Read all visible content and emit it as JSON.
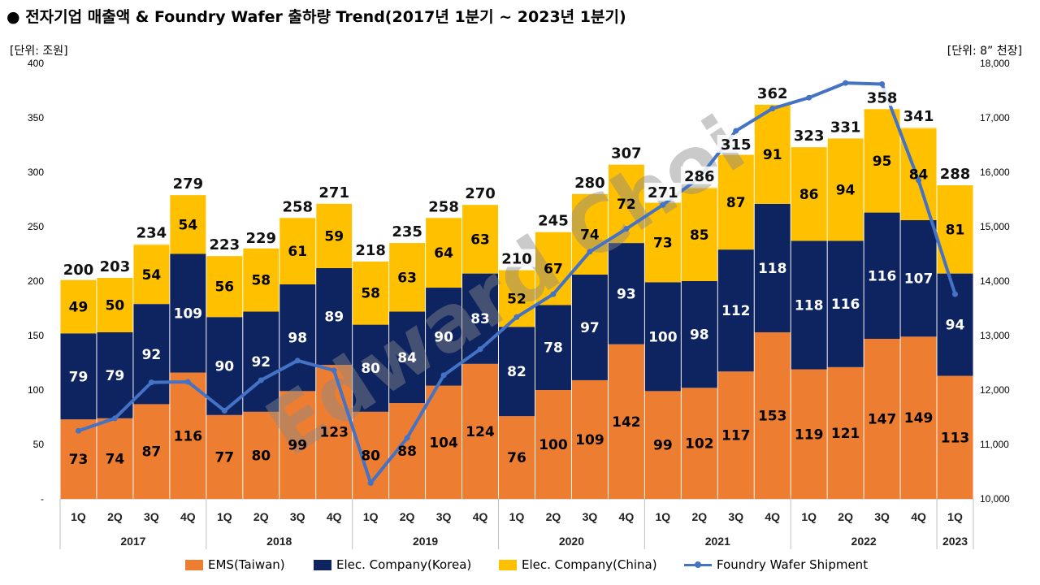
{
  "title": "● 전자기업 매출액 & Foundry Wafer 출하량 Trend(2017년 1분기 ~ 2023년 1분기)",
  "unit_left": "[단위: 조원]",
  "unit_right": "[단위: 8” 천장]",
  "watermark": "Edward Choi",
  "colors": {
    "ems": "#ED7D31",
    "korea": "#0E2461",
    "china": "#FFC000",
    "wafer": "#4472C4",
    "cap": "#FFD966",
    "grid": "#D9D9D9"
  },
  "chart_data": {
    "type": "bar",
    "stacked": true,
    "title": "전자기업 매출액 & Foundry Wafer 출하량 Trend(2017년 1분기 ~ 2023년 1분기)",
    "categories": [
      "1Q",
      "2Q",
      "3Q",
      "4Q",
      "1Q",
      "2Q",
      "3Q",
      "4Q",
      "1Q",
      "2Q",
      "3Q",
      "4Q",
      "1Q",
      "2Q",
      "3Q",
      "4Q",
      "1Q",
      "2Q",
      "3Q",
      "4Q",
      "1Q",
      "2Q",
      "3Q",
      "4Q",
      "1Q"
    ],
    "years": [
      {
        "label": "2017",
        "count": 4
      },
      {
        "label": "2018",
        "count": 4
      },
      {
        "label": "2019",
        "count": 4
      },
      {
        "label": "2020",
        "count": 4
      },
      {
        "label": "2021",
        "count": 4
      },
      {
        "label": "2022",
        "count": 4
      },
      {
        "label": "2023",
        "count": 1
      }
    ],
    "totals": [
      200,
      203,
      234,
      279,
      223,
      229,
      258,
      271,
      218,
      235,
      258,
      270,
      210,
      245,
      280,
      307,
      271,
      286,
      315,
      362,
      323,
      331,
      358,
      341,
      288
    ],
    "series": [
      {
        "name": "EMS(Taiwan)",
        "axis": "left",
        "values": [
          73,
          74,
          87,
          116,
          77,
          80,
          99,
          123,
          80,
          88,
          104,
          124,
          76,
          100,
          109,
          142,
          99,
          102,
          117,
          153,
          119,
          121,
          147,
          149,
          113
        ]
      },
      {
        "name": "Elec. Company(Korea)",
        "axis": "left",
        "values": [
          79,
          79,
          92,
          109,
          90,
          92,
          98,
          89,
          80,
          84,
          90,
          83,
          82,
          78,
          97,
          93,
          100,
          98,
          112,
          118,
          118,
          116,
          116,
          107,
          94
        ]
      },
      {
        "name": "Elec. Company(China)",
        "axis": "left",
        "values": [
          49,
          50,
          54,
          54,
          56,
          58,
          61,
          59,
          58,
          63,
          64,
          63,
          52,
          67,
          74,
          72,
          73,
          85,
          87,
          91,
          86,
          94,
          95,
          84,
          81
        ]
      },
      {
        "name": "Foundry Wafer Shipment",
        "axis": "right",
        "type": "line",
        "values": [
          11250,
          11480,
          12140,
          12150,
          11620,
          12180,
          12540,
          12360,
          10290,
          11120,
          12270,
          12750,
          13340,
          13760,
          14540,
          14960,
          15400,
          15900,
          16760,
          17170,
          17370,
          17640,
          17620,
          15850,
          13760
        ]
      }
    ],
    "y_left": {
      "min": 0,
      "max": 400,
      "step": 50,
      "zero_label": "-",
      "ticks": [
        "-",
        "50",
        "100",
        "150",
        "200",
        "250",
        "300",
        "350",
        "400"
      ]
    },
    "y_right": {
      "min": 10000,
      "max": 18000,
      "step": 1000,
      "ticks": [
        "10,000",
        "11,000",
        "12,000",
        "13,000",
        "14,000",
        "15,000",
        "16,000",
        "17,000",
        "18,000"
      ]
    },
    "grid": false,
    "legend": "bottom"
  },
  "legend": [
    {
      "label": "EMS(Taiwan)",
      "kind": "bar",
      "color": "#ED7D31"
    },
    {
      "label": "Elec. Company(Korea)",
      "kind": "bar",
      "color": "#0E2461"
    },
    {
      "label": "Elec. Company(China)",
      "kind": "bar",
      "color": "#FFC000"
    },
    {
      "label": "Foundry Wafer Shipment",
      "kind": "line",
      "color": "#4472C4"
    }
  ]
}
